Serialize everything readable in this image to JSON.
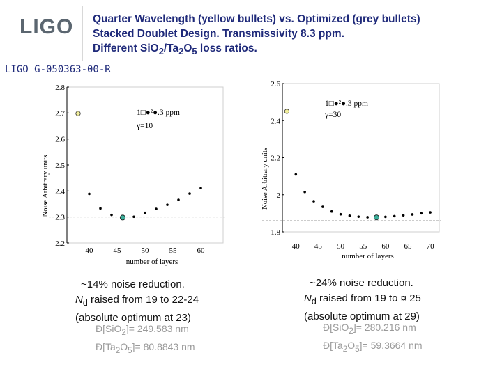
{
  "logo": {
    "text": "LIGO"
  },
  "header": {
    "line1": "Quarter Wavelength (yellow bullets) vs. Optimized (grey bullets)",
    "line2": "Stacked Doublet Design. Transmissivity 8.3 ppm.",
    "line3_prefix": "Different  SiO",
    "line3_sub1": "2",
    "line3_mid": "/Ta",
    "line3_sub2": "2",
    "line3_mid2": "O",
    "line3_sub3": "5",
    "line3_suffix": " loss ratios."
  },
  "doc_id": "LIGO G-050363-00-R",
  "chart_data": [
    {
      "type": "scatter",
      "ylabel": "Noise Arbitrary units",
      "xlabel": "number of layers",
      "xlim": [
        36,
        64
      ],
      "ylim": [
        2.2,
        2.8
      ],
      "xticks": [
        "40",
        "45",
        "50",
        "55",
        "60"
      ],
      "yticks": [
        "2.2",
        "2.3",
        "2.4",
        "2.5",
        "2.6",
        "2.7",
        "2.8"
      ],
      "reference_line": 2.3,
      "annotation_line1": "1□●²●.3 ppm",
      "annotation_line2": "γ=10",
      "series": [
        {
          "role": "quarter-wavelength",
          "color": "#f2ef9c",
          "points": [
            [
              38,
              2.698
            ]
          ]
        },
        {
          "role": "optimized",
          "color": "#000000",
          "points": [
            [
              40,
              2.389
            ],
            [
              42,
              2.333
            ],
            [
              44,
              2.308
            ],
            [
              48,
              2.301
            ],
            [
              50,
              2.316
            ],
            [
              52,
              2.331
            ],
            [
              54,
              2.347
            ],
            [
              56,
              2.366
            ],
            [
              58,
              2.39
            ],
            [
              60,
              2.411
            ]
          ]
        },
        {
          "role": "optimum",
          "color": "#3cae9a",
          "points": [
            [
              46,
              2.298
            ]
          ]
        }
      ]
    },
    {
      "type": "scatter",
      "ylabel": "Noise Arbitrary units",
      "xlabel": "number of layers",
      "xlim": [
        37,
        72
      ],
      "ylim": [
        1.8,
        2.6
      ],
      "xticks": [
        "40",
        "45",
        "50",
        "55",
        "60",
        "65",
        "70"
      ],
      "yticks": [
        "1.8",
        "2",
        "2.2",
        "2.4",
        "2.6"
      ],
      "reference_line": 1.86,
      "annotation_line1": "1□●²●.3 ppm",
      "annotation_line2": "γ=30",
      "series": [
        {
          "role": "quarter-wavelength",
          "color": "#f2ef9c",
          "points": [
            [
              38,
              2.45
            ]
          ]
        },
        {
          "role": "optimized",
          "color": "#000000",
          "points": [
            [
              40,
              2.11
            ],
            [
              42,
              2.015
            ],
            [
              44,
              1.965
            ],
            [
              46,
              1.935
            ],
            [
              48,
              1.91
            ],
            [
              50,
              1.895
            ],
            [
              52,
              1.887
            ],
            [
              54,
              1.882
            ],
            [
              56,
              1.879
            ],
            [
              60,
              1.881
            ],
            [
              62,
              1.885
            ],
            [
              64,
              1.889
            ],
            [
              66,
              1.894
            ],
            [
              68,
              1.9
            ],
            [
              70,
              1.905
            ]
          ]
        },
        {
          "role": "optimum",
          "color": "#3cae9a",
          "points": [
            [
              58,
              1.878
            ]
          ]
        }
      ]
    }
  ],
  "left_note": {
    "line1": "~14% noise reduction.",
    "line2_italic": "N",
    "line2_sub": "d",
    "line2_rest": "  raised from 19 to 22-24",
    "line3": "(absolute optimum at 23)",
    "bullet1_pre": "Ð[SiO",
    "bullet1_sub": "2",
    "bullet1_post": "]= 249.583 nm",
    "bullet2_pre": "Ð[Ta",
    "bullet2_sub1": "2",
    "bullet2_mid": "O",
    "bullet2_sub2": "5",
    "bullet2_post": "]= 80.8843 nm"
  },
  "right_note": {
    "line1": "~24% noise reduction.",
    "line2_italic": "N",
    "line2_sub": "d",
    "line2_rest": "  raised from 19 to  ¤  25",
    "line3": "(absolute optimum at 29)",
    "bullet1_pre": "Ð[SiO",
    "bullet1_sub": "2",
    "bullet1_post": "]= 280.216 nm",
    "bullet2_pre": "Ð[Ta",
    "bullet2_sub1": "2",
    "bullet2_mid": "O",
    "bullet2_sub2": "5",
    "bullet2_post": "]= 59.3664 nm"
  }
}
